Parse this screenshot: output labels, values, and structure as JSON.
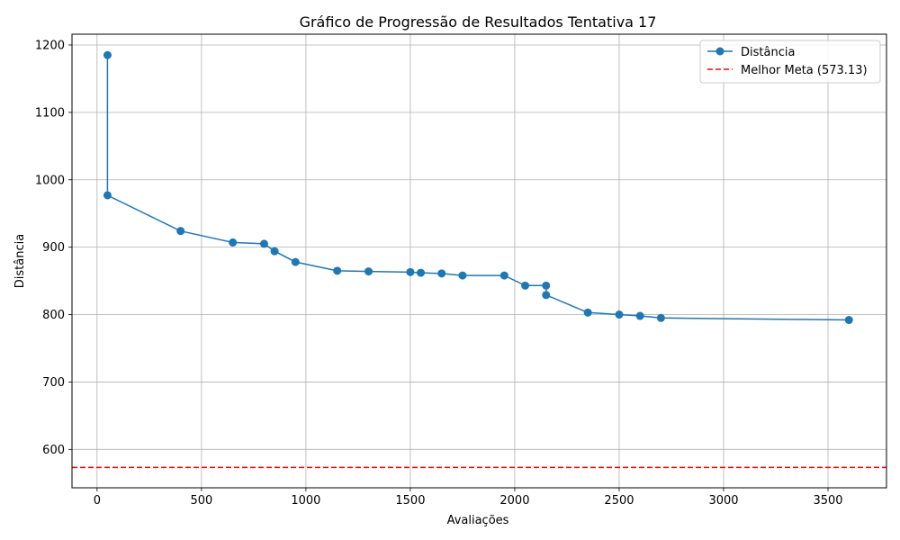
{
  "chart_data": {
    "type": "line",
    "title": "Gráfico de Progressão de Resultados Tentativa 17",
    "xlabel": "Avaliações",
    "ylabel": "Distância",
    "xlim": [
      -120,
      3780
    ],
    "ylim": [
      543,
      1216
    ],
    "xticks": [
      0,
      500,
      1000,
      1500,
      2000,
      2500,
      3000,
      3500
    ],
    "yticks": [
      600,
      700,
      800,
      900,
      1000,
      1100,
      1200
    ],
    "grid": true,
    "legend_position": "top-right",
    "series": [
      {
        "name": "Distância",
        "color": "#1f77b4",
        "marker": "circle",
        "points": [
          {
            "x": 50,
            "y": 1185
          },
          {
            "x": 50,
            "y": 977
          },
          {
            "x": 400,
            "y": 924
          },
          {
            "x": 650,
            "y": 907
          },
          {
            "x": 800,
            "y": 905
          },
          {
            "x": 850,
            "y": 894
          },
          {
            "x": 950,
            "y": 878
          },
          {
            "x": 1150,
            "y": 865
          },
          {
            "x": 1300,
            "y": 864
          },
          {
            "x": 1500,
            "y": 863
          },
          {
            "x": 1550,
            "y": 862
          },
          {
            "x": 1650,
            "y": 861
          },
          {
            "x": 1750,
            "y": 858
          },
          {
            "x": 1950,
            "y": 858
          },
          {
            "x": 2050,
            "y": 843
          },
          {
            "x": 2150,
            "y": 843
          },
          {
            "x": 2150,
            "y": 829
          },
          {
            "x": 2350,
            "y": 803
          },
          {
            "x": 2500,
            "y": 800
          },
          {
            "x": 2600,
            "y": 798
          },
          {
            "x": 2700,
            "y": 795
          },
          {
            "x": 3600,
            "y": 792
          }
        ]
      }
    ],
    "reference_lines": [
      {
        "name": "Melhor Meta (573.13)",
        "y": 573.13,
        "color": "#ff0000",
        "style": "dashed"
      }
    ]
  }
}
